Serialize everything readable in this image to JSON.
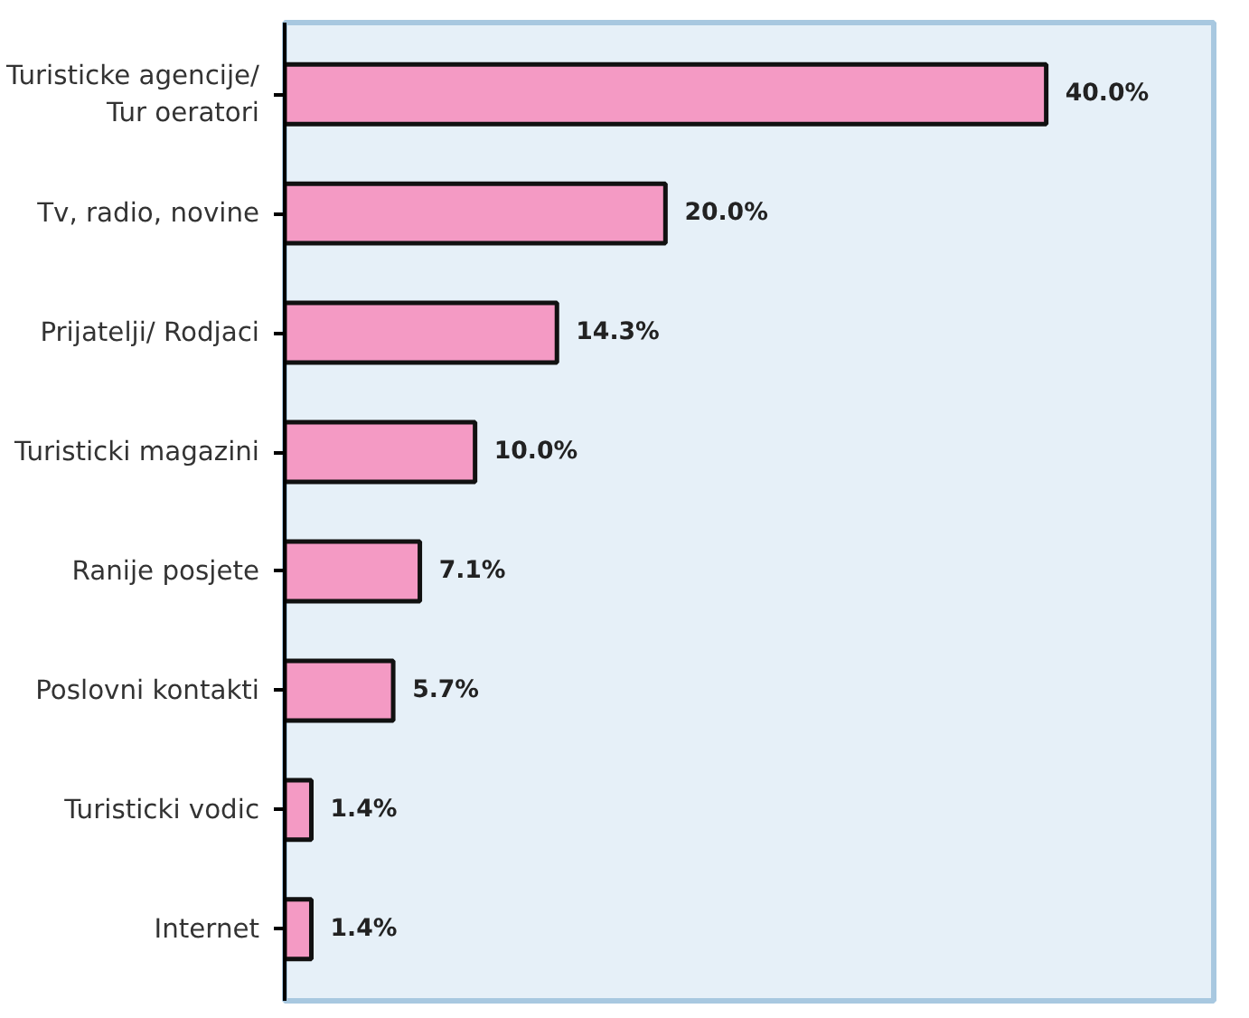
{
  "chart_data": {
    "type": "bar",
    "orientation": "horizontal",
    "categories": [
      "Turisticke agencije/\nTur oeratori",
      "Tv, radio, novine",
      "Prijatelji/ Rodjaci",
      "Turisticki magazini",
      "Ranije posjete",
      "Poslovni kontakti",
      "Turisticki vodic",
      "Internet"
    ],
    "values": [
      40.0,
      20.0,
      14.3,
      10.0,
      7.1,
      5.7,
      1.4,
      1.4
    ],
    "value_labels": [
      "40.0%",
      "20.0%",
      "14.3%",
      "10.0%",
      "7.1%",
      "5.7%",
      "1.4%",
      "1.4%"
    ],
    "color": "#f49ac4",
    "tick_labels": "y"
  }
}
